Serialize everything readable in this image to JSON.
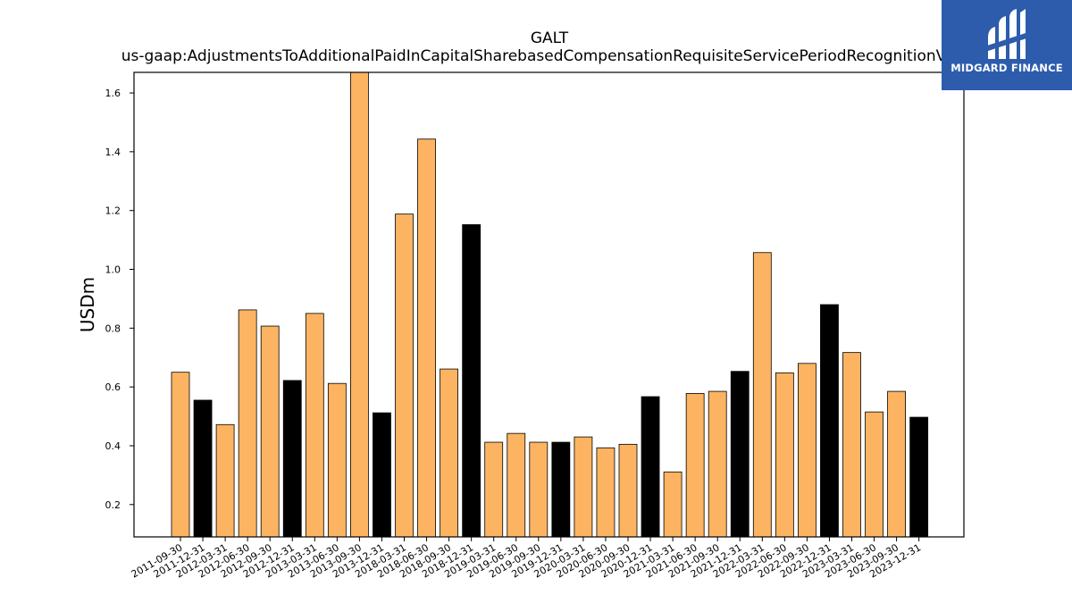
{
  "brand": {
    "name": "MIDGARD FINANCE",
    "background": "#2d5cad"
  },
  "chart_data": {
    "type": "bar",
    "title": "GALT",
    "subtitle": "us-gaap:AdjustmentsToAdditionalPaidInCapitalSharebasedCompensationRequisiteServicePeriodRecognitionValue",
    "xlabel": "",
    "ylabel": "USDm",
    "ylim": [
      0.09,
      1.67
    ],
    "yticks": [
      0.2,
      0.4,
      0.6,
      0.8,
      1.0,
      1.2,
      1.4,
      1.6
    ],
    "grid": false,
    "colors": {
      "quarter": "#fdb462",
      "year_end": "#000000",
      "edge": "#000000"
    },
    "categories": [
      "2011-09-30",
      "2011-12-31",
      "2012-03-31",
      "2012-06-30",
      "2012-09-30",
      "2012-12-31",
      "2013-03-31",
      "2013-06-30",
      "2013-09-30",
      "2013-12-31",
      "2018-03-31",
      "2018-06-30",
      "2018-09-30",
      "2018-12-31",
      "2019-03-31",
      "2019-06-30",
      "2019-09-30",
      "2019-12-31",
      "2020-03-31",
      "2020-06-30",
      "2020-09-30",
      "2020-12-31",
      "2021-03-31",
      "2021-06-30",
      "2021-09-30",
      "2021-12-31",
      "2022-03-31",
      "2022-06-30",
      "2022-09-30",
      "2022-12-31",
      "2023-03-31",
      "2023-06-30",
      "2023-09-30",
      "2023-12-31"
    ],
    "values": [
      0.65,
      0.555,
      0.472,
      0.862,
      0.807,
      0.622,
      0.85,
      0.612,
      1.67,
      0.512,
      1.188,
      1.443,
      0.661,
      1.152,
      0.412,
      0.442,
      0.412,
      0.412,
      0.43,
      0.393,
      0.405,
      0.567,
      0.311,
      0.578,
      0.585,
      0.653,
      1.057,
      0.648,
      0.68,
      0.88,
      0.717,
      0.515,
      0.585,
      0.497
    ]
  }
}
